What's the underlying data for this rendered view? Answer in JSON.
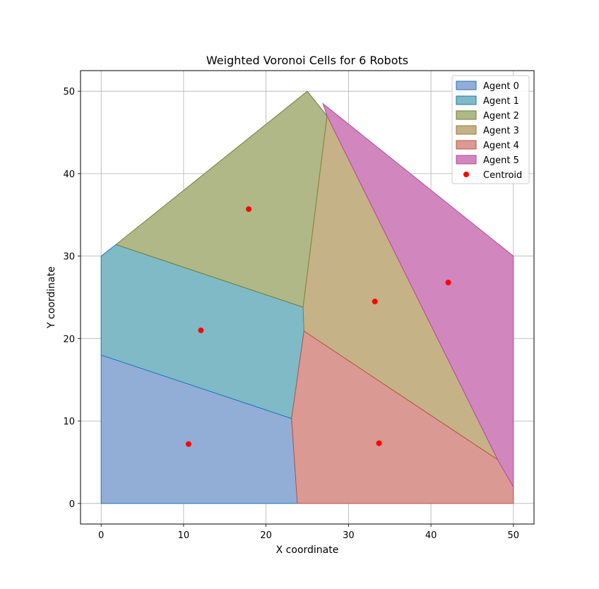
{
  "chart_data": {
    "type": "voronoi",
    "title": "Weighted Voronoi Cells for 6 Robots",
    "xlabel": "X coordinate",
    "ylabel": "Y coordinate",
    "xlim": [
      -2.5,
      52.5
    ],
    "ylim": [
      -2.5,
      52.5
    ],
    "xticks": [
      0,
      10,
      20,
      30,
      40,
      50
    ],
    "yticks": [
      0,
      10,
      20,
      30,
      40,
      50
    ],
    "grid": true,
    "legend_position": "top-right",
    "centroid_label": "Centroid",
    "centroid_color": "#ff0000",
    "cells": [
      {
        "name": "Agent 0",
        "fill": "#92aed6",
        "stroke": "#1f77b4",
        "polygon": [
          [
            0,
            0
          ],
          [
            23.8,
            0
          ],
          [
            23.1,
            10.3
          ],
          [
            0,
            18
          ]
        ],
        "centroid": [
          10.6,
          7.2
        ]
      },
      {
        "name": "Agent 1",
        "fill": "#80bac6",
        "stroke": "#1f77b4",
        "polygon": [
          [
            0,
            18
          ],
          [
            23.1,
            10.3
          ],
          [
            24.6,
            20.9
          ],
          [
            24.5,
            23.8
          ],
          [
            1.8,
            31.4
          ],
          [
            0,
            30
          ]
        ],
        "centroid": [
          12.1,
          21
        ]
      },
      {
        "name": "Agent 2",
        "fill": "#afb886",
        "stroke": "#6f7f3a",
        "polygon": [
          [
            1.8,
            31.4
          ],
          [
            24.5,
            23.8
          ],
          [
            27.4,
            47
          ],
          [
            25,
            50
          ]
        ],
        "centroid": [
          17.9,
          35.7
        ]
      },
      {
        "name": "Agent 3",
        "fill": "#c6b287",
        "stroke": "#8c7f3a",
        "polygon": [
          [
            24.5,
            23.8
          ],
          [
            24.6,
            20.9
          ],
          [
            48.1,
            5.3
          ],
          [
            27.4,
            47
          ]
        ],
        "centroid": [
          33.2,
          24.5
        ]
      },
      {
        "name": "Agent 4",
        "fill": "#db9994",
        "stroke": "#b8553f",
        "polygon": [
          [
            23.8,
            0
          ],
          [
            50,
            0
          ],
          [
            50,
            2
          ],
          [
            48.1,
            5.3
          ],
          [
            24.6,
            20.9
          ],
          [
            23.1,
            10.3
          ]
        ],
        "centroid": [
          33.7,
          7.3
        ]
      },
      {
        "name": "Agent 5",
        "fill": "#d187be",
        "stroke": "#b54a9a",
        "polygon": [
          [
            26.9,
            48.5
          ],
          [
            27.4,
            47
          ],
          [
            48.1,
            5.3
          ],
          [
            50,
            2
          ],
          [
            50,
            30
          ]
        ],
        "centroid": [
          42.1,
          26.8
        ]
      }
    ]
  }
}
